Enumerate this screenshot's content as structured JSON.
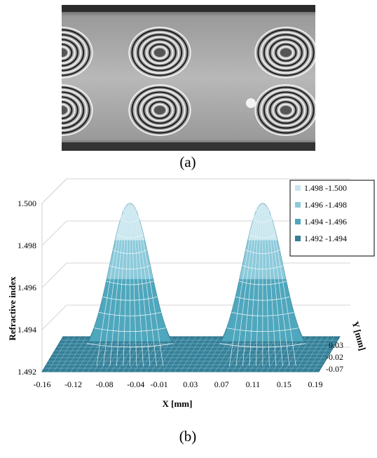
{
  "captions": {
    "a": "(a)",
    "b": "(b)"
  },
  "colors": {
    "band_1": "#c9e6ef",
    "band_2": "#8ccadb",
    "band_3": "#4fa7bd",
    "band_4": "#357f97"
  },
  "chart_data": {
    "type": "surface",
    "xlabel": "X [mm]",
    "ylabel": "Y [mm]",
    "zlabel": "Refractive index",
    "x_ticks": [
      "-0.16",
      "-0.12",
      "-0.08",
      "-0.04",
      "-0.01",
      "0.03",
      "0.07",
      "0.11",
      "0.15",
      "0.19"
    ],
    "y_ticks": [
      "0.03",
      "-0.02",
      "-0.07"
    ],
    "z_ticks": [
      "1.500",
      "1.498",
      "1.496",
      "1.494",
      "1.492"
    ],
    "xlim": [
      -0.16,
      0.19
    ],
    "ylim": [
      -0.07,
      0.03
    ],
    "zlim": [
      1.492,
      1.5
    ],
    "legend_position": "top-right",
    "legend": [
      {
        "label": "1.498 -1.500",
        "color": "#c9e6ef"
      },
      {
        "label": "1.496 -1.498",
        "color": "#8ccadb"
      },
      {
        "label": "1.494 -1.496",
        "color": "#4fa7bd"
      },
      {
        "label": "1.492 -1.494",
        "color": "#357f97"
      }
    ],
    "series": [
      {
        "peak_x": -0.06,
        "peak_value": 1.5,
        "base_value": 1.492
      },
      {
        "peak_x": 0.11,
        "peak_value": 1.5,
        "base_value": 1.492
      }
    ]
  }
}
